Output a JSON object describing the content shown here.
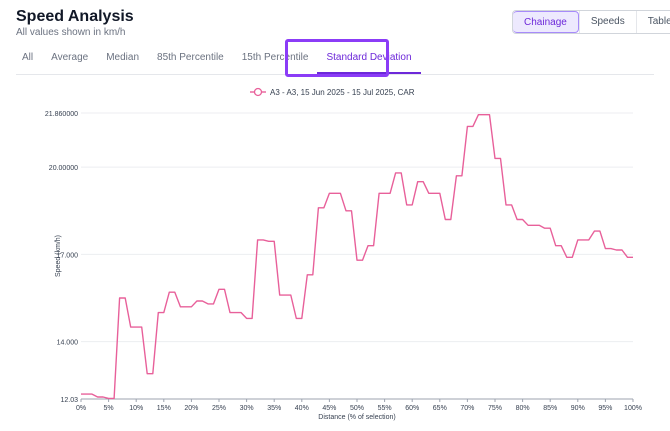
{
  "header": {
    "title": "Speed Analysis",
    "subtitle": "All values shown in km/h"
  },
  "view_toggle": [
    {
      "label": "Chainage",
      "active": true
    },
    {
      "label": "Speeds",
      "active": false
    },
    {
      "label": "Table",
      "active": false
    }
  ],
  "tabs": [
    {
      "label": "All",
      "active": false
    },
    {
      "label": "Average",
      "active": false
    },
    {
      "label": "Median",
      "active": false
    },
    {
      "label": "85th Percentile",
      "active": false
    },
    {
      "label": "15th Percentile",
      "active": false
    },
    {
      "label": "Standard Deviation",
      "active": true
    }
  ],
  "colors": {
    "series": "#e8609a",
    "accent": "#6d28d9",
    "highlight": "#8b3cf7"
  },
  "chart_data": {
    "type": "line",
    "title": "",
    "xlabel": "Distance (% of selection)",
    "ylabel": "Speed (km/h)",
    "xlim": [
      0,
      100
    ],
    "ylim": [
      12.03,
      21.86
    ],
    "x_ticks": [
      0,
      5,
      10,
      15,
      20,
      25,
      30,
      35,
      40,
      45,
      50,
      55,
      60,
      65,
      70,
      75,
      80,
      85,
      90,
      95,
      100
    ],
    "x_tick_labels": [
      "0%",
      "5%",
      "10%",
      "15%",
      "20%",
      "25%",
      "30%",
      "35%",
      "40%",
      "45%",
      "50%",
      "55%",
      "60%",
      "65%",
      "70%",
      "75%",
      "80%",
      "85%",
      "90%",
      "95%",
      "100%"
    ],
    "y_ticks": [
      12.03,
      14.0,
      17.0,
      20.0,
      21.86
    ],
    "y_tick_labels": [
      "12.03",
      "14.000",
      "17.000",
      "20.00000",
      "21.860000"
    ],
    "grid": true,
    "legend": "top-center",
    "series": [
      {
        "name": "A3 - A3, 15 Jun 2025 - 15 Jul 2025, CAR",
        "x": [
          0,
          2,
          3,
          4,
          5,
          6,
          7,
          8,
          9,
          10,
          11,
          12,
          13,
          14,
          15,
          16,
          17,
          18,
          19,
          20,
          21,
          22,
          23,
          24,
          25,
          26,
          27,
          28,
          29,
          30,
          31,
          32,
          33,
          34,
          35,
          36,
          37,
          38,
          39,
          40,
          41,
          42,
          43,
          44,
          45,
          46,
          47,
          48,
          49,
          50,
          51,
          52,
          53,
          54,
          55,
          56,
          57,
          58,
          59,
          60,
          61,
          62,
          63,
          64,
          65,
          66,
          67,
          68,
          69,
          70,
          71,
          72,
          73,
          74,
          75,
          76,
          77,
          78,
          79,
          80,
          81,
          82,
          83,
          84,
          85,
          86,
          87,
          88,
          89,
          90,
          91,
          92,
          93,
          94,
          95,
          96,
          97,
          98,
          99,
          100
        ],
        "y": [
          12.2,
          12.2,
          12.1,
          12.1,
          12.05,
          12.05,
          15.5,
          15.5,
          14.5,
          14.5,
          14.5,
          12.9,
          12.9,
          15.0,
          15.0,
          15.7,
          15.7,
          15.2,
          15.2,
          15.2,
          15.4,
          15.4,
          15.3,
          15.3,
          15.8,
          15.8,
          15.0,
          15.0,
          15.0,
          14.8,
          14.8,
          17.5,
          17.5,
          17.45,
          17.45,
          15.6,
          15.6,
          15.6,
          14.8,
          14.8,
          16.3,
          16.3,
          18.6,
          18.6,
          19.1,
          19.1,
          19.1,
          18.5,
          18.5,
          16.8,
          16.8,
          17.3,
          17.3,
          19.1,
          19.1,
          19.1,
          19.8,
          19.8,
          18.7,
          18.7,
          19.5,
          19.5,
          19.1,
          19.1,
          19.1,
          18.2,
          18.2,
          19.7,
          19.7,
          21.4,
          21.4,
          21.8,
          21.8,
          21.8,
          20.3,
          20.3,
          18.7,
          18.7,
          18.2,
          18.2,
          18.0,
          18.0,
          18.0,
          17.9,
          17.9,
          17.3,
          17.3,
          16.9,
          16.9,
          17.5,
          17.5,
          17.5,
          17.8,
          17.8,
          17.2,
          17.2,
          17.15,
          17.15,
          16.9,
          16.9
        ]
      }
    ]
  }
}
